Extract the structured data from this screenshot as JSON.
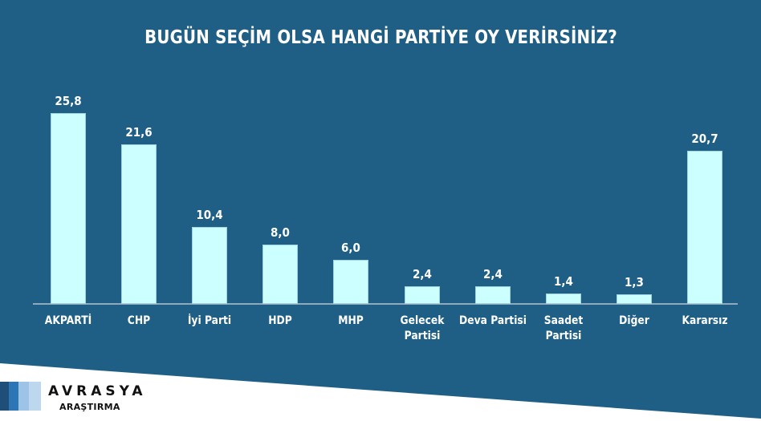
{
  "chart_data": {
    "type": "bar",
    "title": "BUGÜN SEÇİM OLSA HANGİ PARTİYE OY VERİRSİNİZ?",
    "categories": [
      "AKPARTİ",
      "CHP",
      "İyi Parti",
      "HDP",
      "MHP",
      "Gelecek Partisi",
      "Deva Partisi",
      "Saadet Partisi",
      "Diğer",
      "Kararsız"
    ],
    "category_display": [
      "AKPARTİ",
      "CHP",
      "İyi Parti",
      "HDP",
      "MHP",
      "Gelecek\nPartisi",
      "Deva Partisi",
      "Saadet\nPartisi",
      "Diğer",
      "Kararsız"
    ],
    "values": [
      25.8,
      21.6,
      10.4,
      8.0,
      6.0,
      2.4,
      2.4,
      1.4,
      1.3,
      20.7
    ],
    "value_labels": [
      "25,8",
      "21,6",
      "10,4",
      "8,0",
      "6,0",
      "2,4",
      "2,4",
      "1,4",
      "1,3",
      "20,7"
    ],
    "xlabel": "",
    "ylabel": "",
    "ylim": [
      0,
      30
    ],
    "grid": false,
    "legend": "none",
    "data_labels": "above bars"
  },
  "colors": {
    "background": "#1f5f86",
    "bar": "#ccffff",
    "text": "#ffffff",
    "axis": "#8fa9bd"
  },
  "brand": {
    "name": "AVRASYA",
    "subtitle": "ARAŞTIRMA",
    "stripes": [
      "#1f4e79",
      "#2e75b6",
      "#9dc3e6",
      "#bdd7ee"
    ]
  }
}
